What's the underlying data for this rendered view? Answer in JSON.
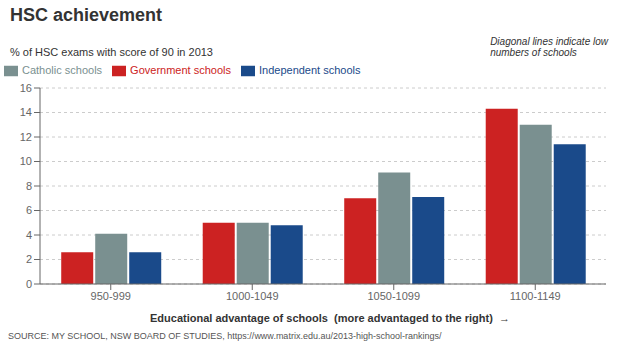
{
  "chart_data": {
    "type": "bar",
    "title": "HSC achievement",
    "ylabel": "% of HSC exams with score of 90 in 2013",
    "xlabel": "Educational advantage of schools  (more advantaged to the right)  →",
    "source": "SOURCE: MY SCHOOL, NSW BOARD OF STUDIES, https://www.matrix.edu.au/2013-high-school-rankings/",
    "annotation": "Diagonal lines indicate low\nnumbers of schools",
    "categories": [
      "950-999",
      "1000-1049",
      "1050-1099",
      "1100-1149"
    ],
    "series": [
      {
        "name": "Government schools",
        "color": "#cc2222",
        "values": [
          2.6,
          5.0,
          7.0,
          14.3
        ]
      },
      {
        "name": "Catholic schools",
        "color": "#7a9090",
        "values": [
          4.1,
          5.0,
          9.1,
          13.0
        ]
      },
      {
        "name": "Independent schools",
        "color": "#1a4a8a",
        "values": [
          2.6,
          4.8,
          7.1,
          11.4
        ]
      }
    ],
    "ylim": [
      0,
      16
    ],
    "yticks": [
      0,
      2,
      4,
      6,
      8,
      10,
      12,
      14,
      16
    ],
    "grid": true,
    "legend": "upper left"
  }
}
